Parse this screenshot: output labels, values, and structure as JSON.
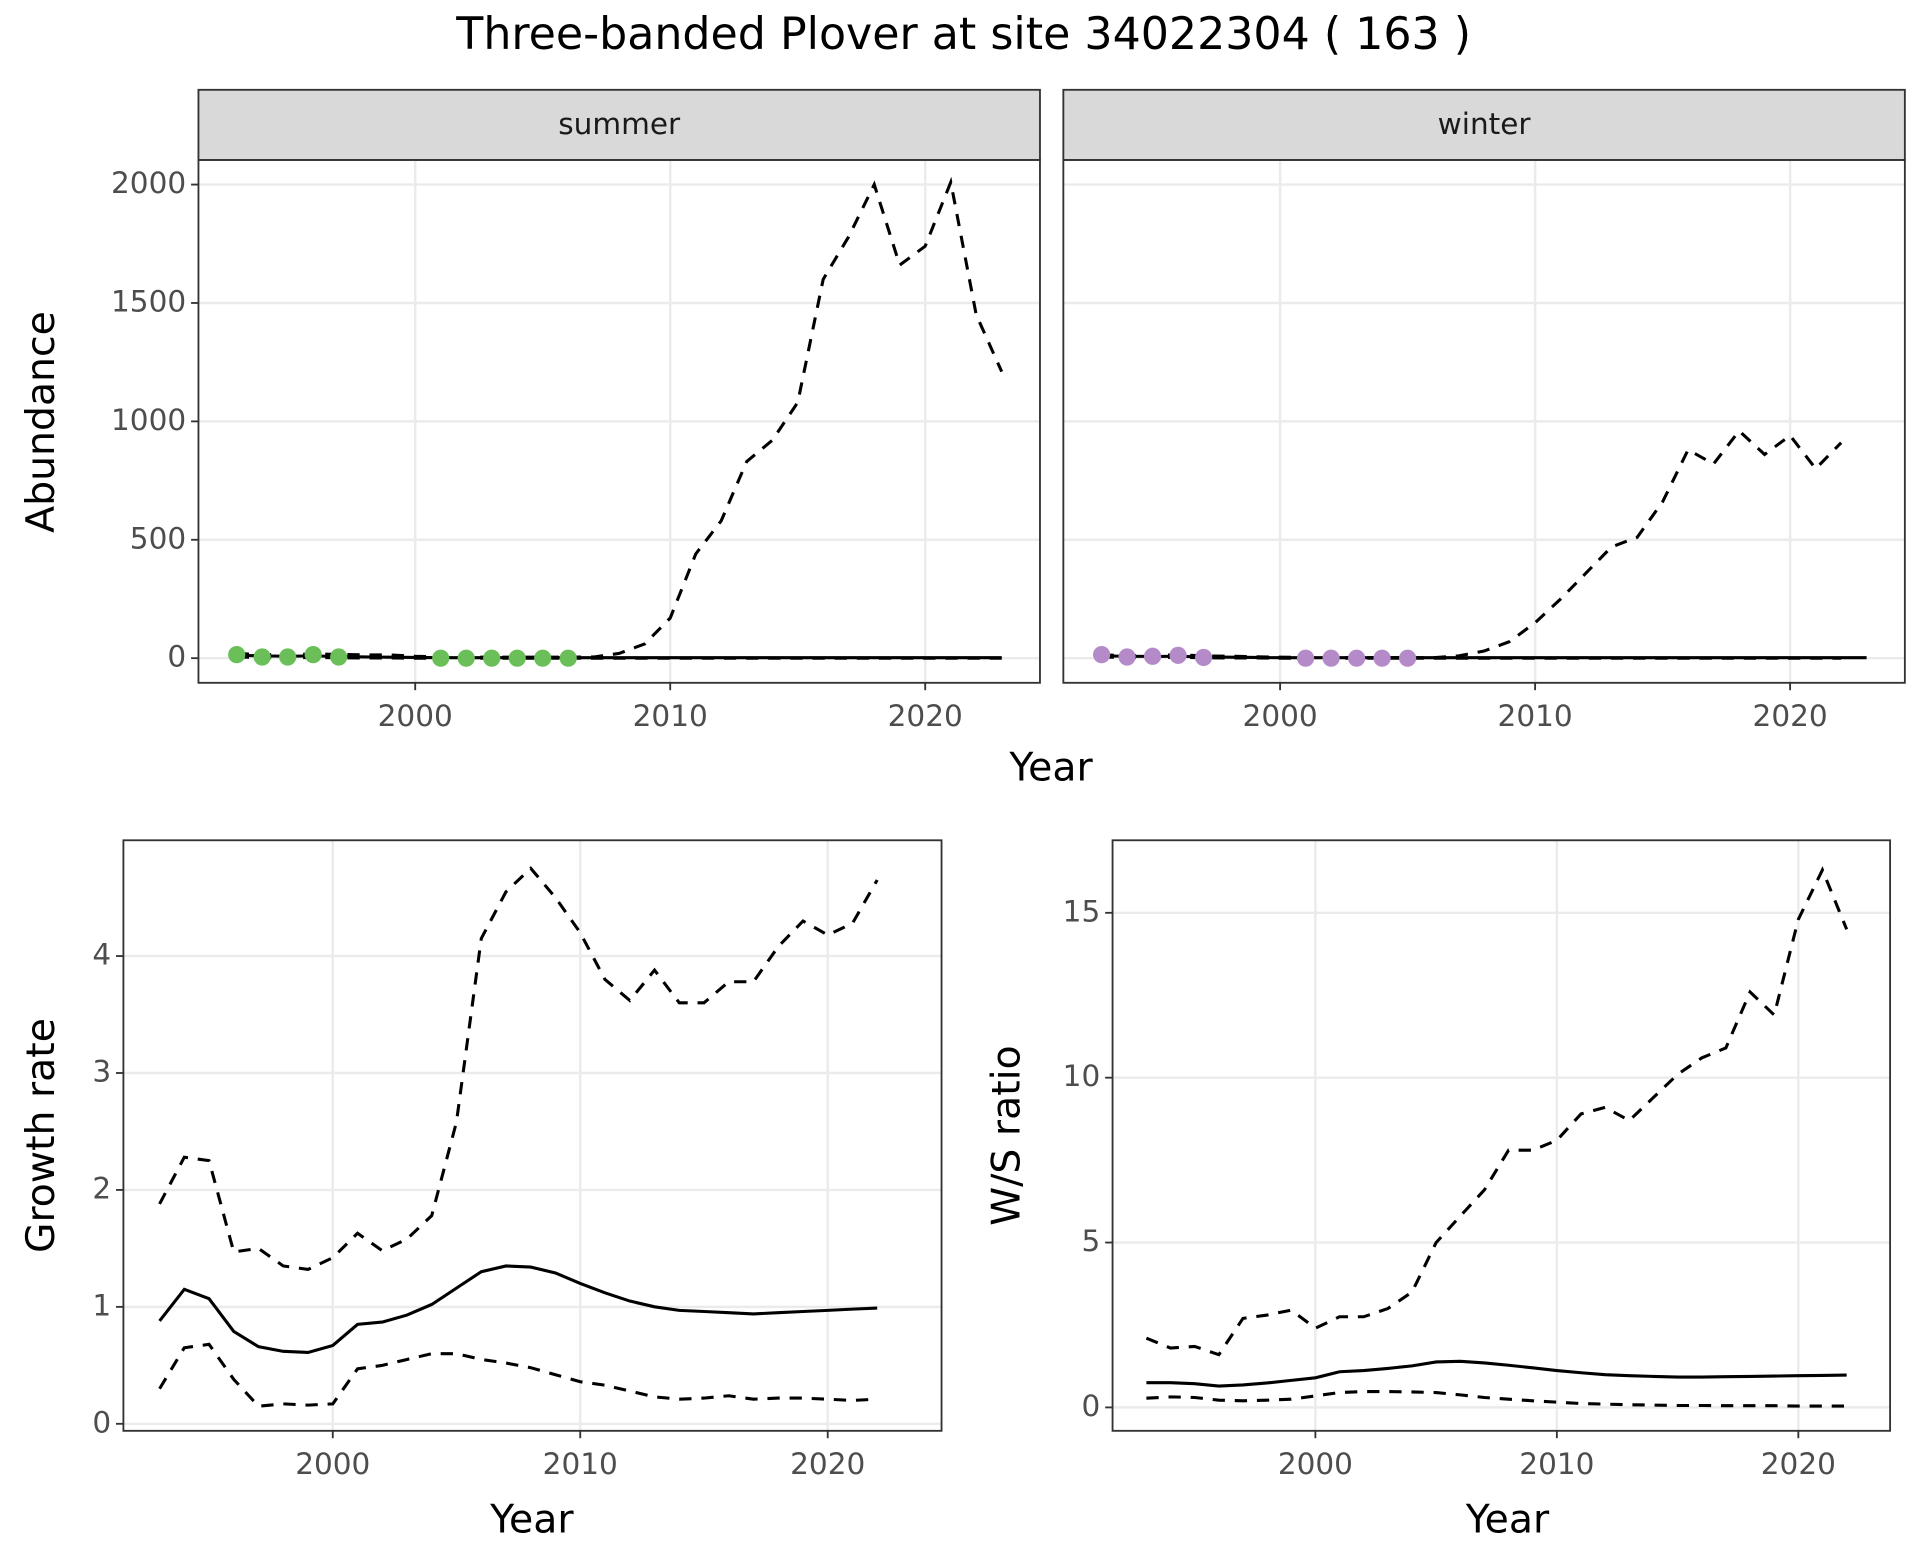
{
  "title": "Three-banded Plover at site 34022304 ( 163 )",
  "chart_data": [
    {
      "type": "line",
      "strip": "summer",
      "xlabel": "Year",
      "ylabel": "Abundance",
      "xlim": [
        1991.5,
        2024.5
      ],
      "ylim": [
        -104,
        2104
      ],
      "xticks": [
        2000,
        2010,
        2020
      ],
      "yticks": [
        0,
        500,
        1000,
        1500,
        2000
      ],
      "grid": true,
      "x": [
        1993,
        1994,
        1995,
        1996,
        1997,
        1998,
        1999,
        2000,
        2001,
        2002,
        2003,
        2004,
        2005,
        2006,
        2007,
        2008,
        2009,
        2010,
        2011,
        2012,
        2013,
        2014,
        2015,
        2016,
        2017,
        2018,
        2019,
        2020,
        2021,
        2022,
        2023
      ],
      "series": [
        {
          "style": "solid",
          "color": "#000000",
          "values": [
            12,
            10,
            8,
            10,
            7,
            5,
            4,
            3,
            2,
            2,
            2,
            2,
            2,
            2,
            2,
            2,
            2,
            2,
            2,
            2,
            2,
            2,
            2,
            2,
            2,
            2,
            2,
            2,
            2,
            2,
            2
          ]
        },
        {
          "style": "dashed",
          "color": "#000000",
          "values": [
            20,
            15,
            14,
            18,
            16,
            14,
            14,
            8,
            5,
            4,
            4,
            4,
            4,
            4,
            5,
            20,
            60,
            170,
            440,
            580,
            830,
            920,
            1080,
            1600,
            1780,
            2000,
            1660,
            1740,
            2010,
            1450,
            1210
          ]
        },
        {
          "style": "dashed",
          "color": "#000000",
          "values": [
            5,
            3,
            2,
            3,
            2,
            1,
            1,
            0,
            0,
            0,
            0,
            0,
            0,
            0,
            0,
            0,
            0,
            0,
            0,
            0,
            0,
            0,
            0,
            0,
            0,
            0,
            0,
            0,
            0,
            0,
            0
          ]
        },
        {
          "style": "points",
          "color": "#6abf59",
          "x": [
            1993,
            1994,
            1995,
            1996,
            1997,
            2001,
            2002,
            2003,
            2004,
            2005,
            2006
          ],
          "values": [
            15,
            5,
            5,
            15,
            5,
            0,
            0,
            0,
            0,
            0,
            0
          ]
        }
      ]
    },
    {
      "type": "line",
      "strip": "winter",
      "xlim": [
        1991.5,
        2024.5
      ],
      "ylim": [
        -104,
        2104
      ],
      "xticks": [
        2000,
        2010,
        2020
      ],
      "yticks": [
        0,
        500,
        1000,
        1500,
        2000
      ],
      "grid": true,
      "x": [
        1993,
        1994,
        1995,
        1996,
        1997,
        1998,
        1999,
        2000,
        2001,
        2002,
        2003,
        2004,
        2005,
        2006,
        2007,
        2008,
        2009,
        2010,
        2011,
        2012,
        2013,
        2014,
        2015,
        2016,
        2017,
        2018,
        2019,
        2020,
        2021,
        2022,
        2023
      ],
      "series": [
        {
          "style": "solid",
          "color": "#000000",
          "values": [
            10,
            8,
            7,
            8,
            5,
            4,
            3,
            2,
            2,
            2,
            2,
            2,
            2,
            2,
            2,
            2,
            2,
            2,
            2,
            2,
            2,
            2,
            2,
            2,
            2,
            2,
            2,
            2,
            2,
            2,
            2
          ]
        },
        {
          "style": "dashed",
          "color": "#000000",
          "values": [
            15,
            10,
            12,
            14,
            10,
            8,
            6,
            4,
            3,
            2,
            2,
            2,
            2,
            2,
            10,
            30,
            70,
            150,
            250,
            360,
            470,
            510,
            660,
            880,
            820,
            960,
            860,
            940,
            800,
            910,
            null
          ]
        },
        {
          "style": "dashed",
          "color": "#000000",
          "values": [
            5,
            3,
            3,
            4,
            2,
            1,
            1,
            0,
            0,
            0,
            0,
            0,
            0,
            0,
            0,
            0,
            0,
            0,
            0,
            0,
            0,
            0,
            0,
            0,
            0,
            0,
            0,
            0,
            0,
            0,
            null
          ]
        },
        {
          "style": "points",
          "color": "#b48bc8",
          "x": [
            1993,
            1994,
            1995,
            1996,
            1997,
            2001,
            2002,
            2003,
            2004,
            2005
          ],
          "values": [
            15,
            5,
            8,
            12,
            3,
            0,
            0,
            0,
            0,
            0
          ]
        }
      ]
    },
    {
      "type": "line",
      "xlabel": "Year",
      "ylabel": "Growth rate",
      "xlim": [
        1991.54,
        2024.6
      ],
      "ylim": [
        -0.06,
        4.99
      ],
      "xticks": [
        2000,
        2010,
        2020
      ],
      "yticks": [
        0,
        1,
        2,
        3,
        4
      ],
      "grid": true,
      "x": [
        1993,
        1994,
        1995,
        1996,
        1997,
        1998,
        1999,
        2000,
        2001,
        2002,
        2003,
        2004,
        2005,
        2006,
        2007,
        2008,
        2009,
        2010,
        2011,
        2012,
        2013,
        2014,
        2015,
        2016,
        2017,
        2018,
        2019,
        2020,
        2021,
        2022
      ],
      "series": [
        {
          "style": "solid",
          "color": "#000000",
          "values": [
            0.88,
            1.15,
            1.07,
            0.79,
            0.66,
            0.62,
            0.61,
            0.67,
            0.85,
            0.87,
            0.93,
            1.02,
            1.16,
            1.3,
            1.35,
            1.34,
            1.29,
            1.2,
            1.12,
            1.05,
            1.0,
            0.97,
            0.96,
            0.95,
            0.94,
            0.95,
            0.96,
            0.97,
            0.98,
            0.99
          ]
        },
        {
          "style": "dashed",
          "color": "#000000",
          "values": [
            1.88,
            2.28,
            2.25,
            1.47,
            1.5,
            1.35,
            1.32,
            1.42,
            1.63,
            1.48,
            1.58,
            1.78,
            2.58,
            4.15,
            4.55,
            4.75,
            4.5,
            4.2,
            3.8,
            3.62,
            3.88,
            3.6,
            3.6,
            3.78,
            3.78,
            4.08,
            4.3,
            4.18,
            4.28,
            4.65
          ]
        },
        {
          "style": "dashed",
          "color": "#000000",
          "values": [
            0.3,
            0.65,
            0.68,
            0.38,
            0.15,
            0.17,
            0.16,
            0.17,
            0.47,
            0.5,
            0.55,
            0.6,
            0.6,
            0.55,
            0.52,
            0.48,
            0.42,
            0.36,
            0.33,
            0.28,
            0.23,
            0.21,
            0.22,
            0.24,
            0.21,
            0.22,
            0.22,
            0.21,
            0.2,
            0.21
          ]
        }
      ]
    },
    {
      "type": "line",
      "xlabel": "Year",
      "ylabel": "W/S ratio",
      "xlim": [
        1991.6,
        2023.8
      ],
      "ylim": [
        -0.71,
        17.2
      ],
      "xticks": [
        2000,
        2010,
        2020
      ],
      "yticks": [
        0,
        5,
        10,
        15
      ],
      "grid": true,
      "x": [
        1993,
        1994,
        1995,
        1996,
        1997,
        1998,
        1999,
        2000,
        2001,
        2002,
        2003,
        2004,
        2005,
        2006,
        2007,
        2008,
        2009,
        2010,
        2011,
        2012,
        2013,
        2014,
        2015,
        2016,
        2017,
        2018,
        2019,
        2020,
        2021,
        2022
      ],
      "series": [
        {
          "style": "solid",
          "color": "#000000",
          "values": [
            0.75,
            0.75,
            0.72,
            0.65,
            0.68,
            0.74,
            0.82,
            0.9,
            1.08,
            1.12,
            1.18,
            1.26,
            1.38,
            1.4,
            1.35,
            1.28,
            1.2,
            1.12,
            1.05,
            0.99,
            0.96,
            0.94,
            0.92,
            0.92,
            0.93,
            0.94,
            0.95,
            0.96,
            0.97,
            0.98
          ]
        },
        {
          "style": "dashed",
          "color": "#000000",
          "values": [
            2.1,
            1.8,
            1.85,
            1.6,
            2.7,
            2.8,
            2.95,
            2.4,
            2.75,
            2.75,
            3.0,
            3.5,
            5.0,
            5.8,
            6.6,
            7.8,
            7.8,
            8.1,
            8.9,
            9.1,
            8.7,
            9.4,
            10.1,
            10.6,
            10.9,
            12.6,
            11.9,
            14.8,
            16.3,
            14.5
          ]
        },
        {
          "style": "dashed",
          "color": "#000000",
          "values": [
            0.28,
            0.32,
            0.3,
            0.22,
            0.2,
            0.22,
            0.25,
            0.35,
            0.45,
            0.48,
            0.48,
            0.47,
            0.45,
            0.38,
            0.3,
            0.25,
            0.2,
            0.16,
            0.12,
            0.1,
            0.08,
            0.07,
            0.06,
            0.06,
            0.05,
            0.05,
            0.05,
            0.04,
            0.04,
            0.04
          ]
        }
      ]
    }
  ]
}
